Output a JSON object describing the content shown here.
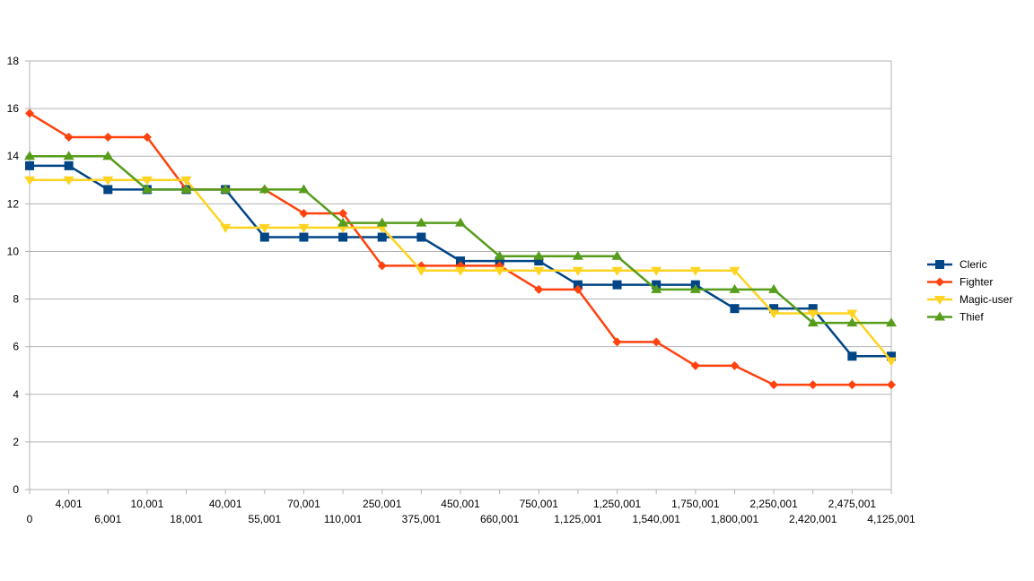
{
  "chart_data": {
    "type": "line",
    "title": "",
    "xlabel": "",
    "ylabel": "",
    "ylim": [
      0,
      18
    ],
    "yticks": [
      0,
      2,
      4,
      6,
      8,
      10,
      12,
      14,
      16,
      18
    ],
    "grid": "horizontal",
    "legend_position": "right",
    "categories": [
      "0",
      "4,001",
      "6,001",
      "10,001",
      "18,001",
      "40,001",
      "55,001",
      "70,001",
      "110,001",
      "250,001",
      "375,001",
      "450,001",
      "660,001",
      "750,001",
      "1,125,001",
      "1,250,001",
      "1,540,001",
      "1,750,001",
      "1,800,001",
      "2,250,001",
      "2,420,001",
      "2,475,001",
      "4,125,001"
    ],
    "series": [
      {
        "name": "Cleric",
        "color": "#004586",
        "marker": "square",
        "values": [
          13.6,
          13.6,
          12.6,
          12.6,
          12.6,
          12.6,
          10.6,
          10.6,
          10.6,
          10.6,
          10.6,
          9.6,
          9.6,
          9.6,
          8.6,
          8.6,
          8.6,
          8.6,
          7.6,
          7.6,
          7.6,
          5.6,
          5.6
        ]
      },
      {
        "name": "Fighter",
        "color": "#ff420e",
        "marker": "diamond",
        "values": [
          15.8,
          14.8,
          14.8,
          14.8,
          12.6,
          12.6,
          12.6,
          11.6,
          11.6,
          9.4,
          9.4,
          9.4,
          9.4,
          8.4,
          8.4,
          6.2,
          6.2,
          5.2,
          5.2,
          4.4,
          4.4,
          4.4,
          4.4
        ]
      },
      {
        "name": "Magic-user",
        "color": "#ffd320",
        "marker": "triangle-down",
        "values": [
          13.0,
          13.0,
          13.0,
          13.0,
          13.0,
          11.0,
          11.0,
          11.0,
          11.0,
          11.0,
          9.2,
          9.2,
          9.2,
          9.2,
          9.2,
          9.2,
          9.2,
          9.2,
          9.2,
          7.4,
          7.4,
          7.4,
          5.4
        ]
      },
      {
        "name": "Thief",
        "color": "#579d1c",
        "marker": "triangle-up",
        "values": [
          14.0,
          14.0,
          14.0,
          12.6,
          12.6,
          12.6,
          12.6,
          12.6,
          11.2,
          11.2,
          11.2,
          11.2,
          9.8,
          9.8,
          9.8,
          9.8,
          8.4,
          8.4,
          8.4,
          8.4,
          7.0,
          7.0,
          7.0
        ]
      }
    ]
  }
}
